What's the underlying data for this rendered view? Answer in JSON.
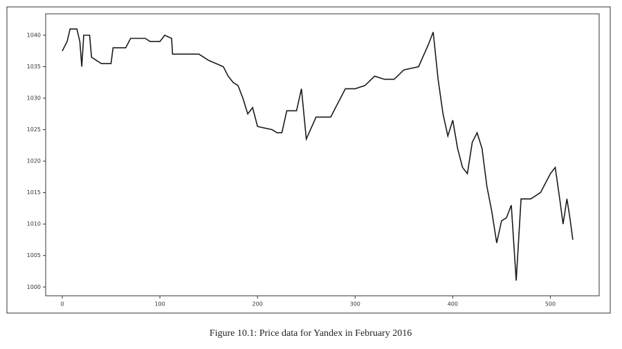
{
  "chart_data": {
    "type": "line",
    "caption": "Figure 10.1: Price data for Yandex in February 2016",
    "x": [
      0,
      5,
      8,
      15,
      18,
      20,
      22,
      28,
      30,
      35,
      40,
      50,
      52,
      65,
      70,
      85,
      90,
      100,
      105,
      112,
      113,
      140,
      150,
      165,
      170,
      175,
      180,
      185,
      190,
      195,
      200,
      215,
      220,
      225,
      230,
      240,
      245,
      250,
      260,
      275,
      280,
      290,
      300,
      310,
      320,
      330,
      340,
      350,
      365,
      375,
      380,
      385,
      390,
      395,
      400,
      405,
      410,
      415,
      420,
      425,
      430,
      435,
      440,
      445,
      450,
      455,
      460,
      465,
      470,
      480,
      490,
      500,
      505,
      510,
      513,
      517,
      520,
      523
    ],
    "series": [
      {
        "color": "#1a1a1a",
        "values": [
          1037.5,
          1039,
          1041,
          1041,
          1039,
          1035,
          1040,
          1040,
          1036.5,
          1036,
          1035.5,
          1035.5,
          1038,
          1038,
          1039.5,
          1039.5,
          1039,
          1039,
          1040,
          1039.5,
          1037,
          1037,
          1036,
          1035,
          1033.5,
          1032.5,
          1032,
          1030,
          1027.5,
          1028.5,
          1025.5,
          1025,
          1024.5,
          1024.5,
          1028,
          1028,
          1031.5,
          1023.5,
          1027,
          1027,
          1028.5,
          1031.5,
          1031.5,
          1032,
          1033.5,
          1033,
          1033,
          1034.5,
          1035,
          1038.5,
          1040.5,
          1033,
          1027.5,
          1024,
          1026.5,
          1022,
          1019,
          1018,
          1023,
          1024.5,
          1022,
          1016,
          1012,
          1007,
          1010.5,
          1011,
          1013,
          1001,
          1014,
          1014,
          1015,
          1018,
          1019,
          1013.5,
          1010,
          1014,
          1011,
          1007.5
        ]
      }
    ],
    "xlim": [
      -17,
      550
    ],
    "ylim": [
      998.6,
      1043.4
    ],
    "xticks": [
      0,
      100,
      200,
      300,
      400,
      500
    ],
    "yticks": [
      1000,
      1005,
      1010,
      1015,
      1020,
      1025,
      1030,
      1035,
      1040
    ],
    "grid": false
  }
}
